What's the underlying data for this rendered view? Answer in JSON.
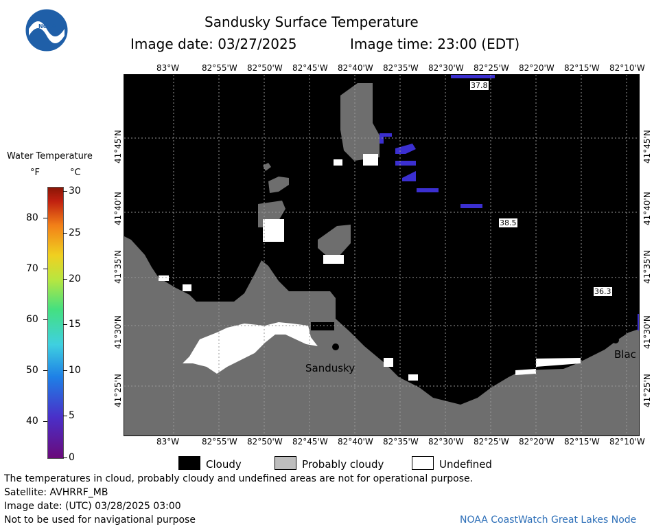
{
  "logo": {
    "text": "NOAA"
  },
  "header": {
    "title": "Sandusky Surface Temperature",
    "image_date_label": "Image date: 03/27/2025",
    "image_time_label": "Image time: 23:00 (EDT)"
  },
  "map": {
    "lon_labels": [
      "83°W",
      "82°55'W",
      "82°50'W",
      "82°45'W",
      "82°40'W",
      "82°35'W",
      "82°30'W",
      "82°25'W",
      "82°20'W",
      "82°15'W",
      "82°10'W"
    ],
    "lat_labels": [
      "41°45'N",
      "41°40'N",
      "41°35'N",
      "41°30'N",
      "41°25'N"
    ],
    "colors": {
      "cloudy": "#000000",
      "probably_cloudy": "#6e6e6e",
      "undefined": "#ffffff",
      "water_blue": "#3b2fd0"
    },
    "city_label": "Sandusky",
    "city_label_right": "Blac",
    "temp_labels": [
      "37.8",
      "38.5",
      "36.3"
    ]
  },
  "colorbar": {
    "title": "Water Temperature",
    "unit_f": "°F",
    "unit_c": "°C",
    "f_ticks": [
      "80",
      "70",
      "60",
      "50",
      "40"
    ],
    "c_ticks": [
      "30",
      "25",
      "20",
      "15",
      "10",
      "5",
      "0"
    ]
  },
  "legend": {
    "cloudy": "Cloudy",
    "probably_cloudy": "Probably cloudy",
    "undefined": "Undefined"
  },
  "footer": {
    "disclaimer": "The temperatures in cloud, probably cloudy and undefined areas are not for operational purpose.",
    "satellite": "Satellite: AVHRRF_MB",
    "utc_date": "Image date: (UTC) 03/28/2025  03:00",
    "nav_warning": "Not to be used for navigational purpose",
    "credit": "NOAA CoastWatch Great Lakes Node"
  }
}
